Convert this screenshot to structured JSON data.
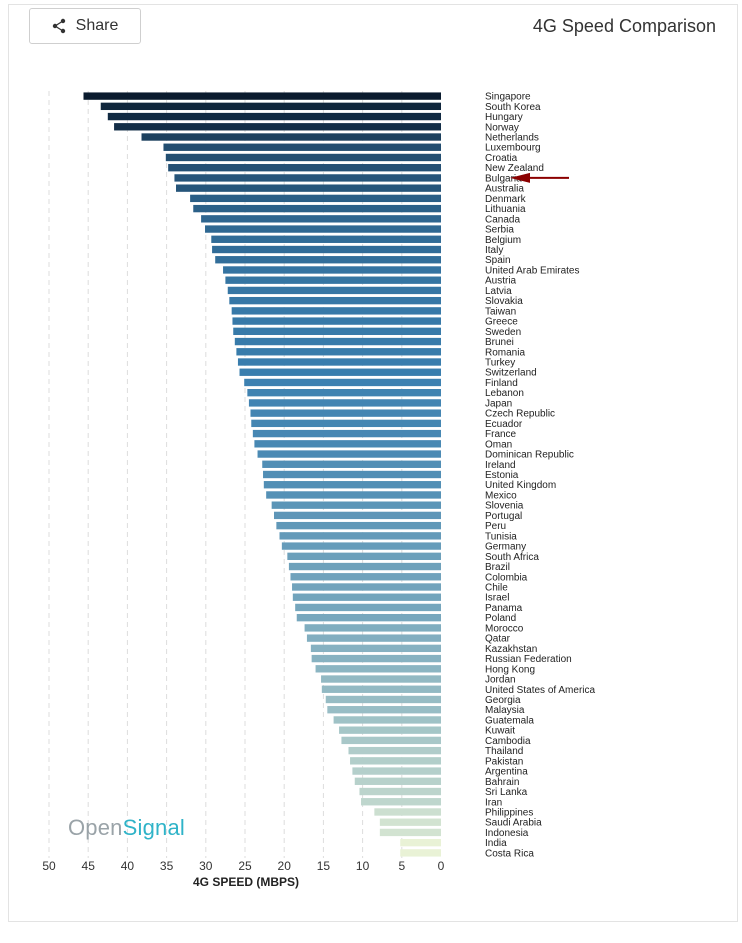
{
  "header": {
    "share_label": "Share",
    "title": "4G Speed Comparison"
  },
  "watermark": {
    "part1": "Open",
    "part2": "Signal"
  },
  "colors": {
    "bar_dark": "#0a1b2e",
    "bar_mid": "#3a7fb0",
    "bar_light": "#e9f2d6",
    "arrow": "#8b0000",
    "grid": "#dddddd"
  },
  "chart_data": {
    "type": "bar",
    "orientation": "horizontal",
    "title": "4G Speed Comparison",
    "xlabel": "4G SPEED (MBPS)",
    "ylabel": "",
    "xlim": [
      0,
      50
    ],
    "xticks": [
      0,
      5,
      10,
      15,
      20,
      25,
      30,
      35,
      40,
      45,
      50
    ],
    "grid": true,
    "x_axis_reversed": true,
    "highlighted_category": "Bulgaria",
    "categories": [
      "Singapore",
      "South Korea",
      "Hungary",
      "Norway",
      "Netherlands",
      "Luxembourg",
      "Croatia",
      "New Zealand",
      "Bulgaria",
      "Australia",
      "Denmark",
      "Lithuania",
      "Canada",
      "Serbia",
      "Belgium",
      "Italy",
      "Spain",
      "United Arab Emirates",
      "Austria",
      "Latvia",
      "Slovakia",
      "Taiwan",
      "Greece",
      "Sweden",
      "Brunei",
      "Romania",
      "Turkey",
      "Switzerland",
      "Finland",
      "Lebanon",
      "Japan",
      "Czech Republic",
      "Ecuador",
      "France",
      "Oman",
      "Dominican Republic",
      "Ireland",
      "Estonia",
      "United Kingdom",
      "Mexico",
      "Slovenia",
      "Portugal",
      "Peru",
      "Tunisia",
      "Germany",
      "South Africa",
      "Brazil",
      "Colombia",
      "Chile",
      "Israel",
      "Panama",
      "Poland",
      "Morocco",
      "Qatar",
      "Kazakhstan",
      "Russian Federation",
      "Hong Kong",
      "Jordan",
      "United States of America",
      "Georgia",
      "Malaysia",
      "Guatemala",
      "Kuwait",
      "Cambodia",
      "Thailand",
      "Pakistan",
      "Argentina",
      "Bahrain",
      "Sri Lanka",
      "Iran",
      "Philippines",
      "Saudi Arabia",
      "Indonesia",
      "India",
      "Costa Rica"
    ],
    "values": [
      45.6,
      43.4,
      42.5,
      41.7,
      38.2,
      35.4,
      35.1,
      34.8,
      34.0,
      33.8,
      32.0,
      31.6,
      30.6,
      30.1,
      29.3,
      29.2,
      28.8,
      27.8,
      27.5,
      27.2,
      27.0,
      26.7,
      26.6,
      26.5,
      26.3,
      26.1,
      25.9,
      25.7,
      25.1,
      24.7,
      24.5,
      24.3,
      24.2,
      24.0,
      23.8,
      23.4,
      22.8,
      22.7,
      22.6,
      22.3,
      21.6,
      21.3,
      21.0,
      20.6,
      20.3,
      19.6,
      19.4,
      19.2,
      19.0,
      18.9,
      18.6,
      18.4,
      17.4,
      17.1,
      16.6,
      16.5,
      16.0,
      15.3,
      15.2,
      14.7,
      14.5,
      13.7,
      13.0,
      12.7,
      11.8,
      11.6,
      11.3,
      11.0,
      10.4,
      10.2,
      8.5,
      7.8,
      7.8,
      5.2,
      5.2
    ]
  }
}
